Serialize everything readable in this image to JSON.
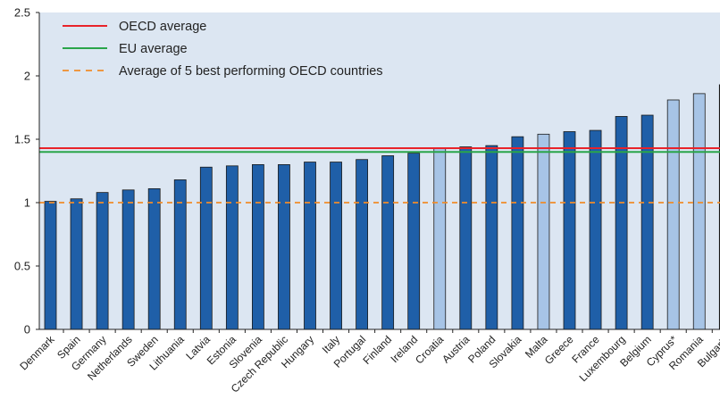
{
  "chart_data": {
    "type": "bar",
    "title": "",
    "xlabel": "",
    "ylabel": "",
    "ylim": [
      0,
      2.5
    ],
    "yticks": [
      "0",
      "0.5",
      "1",
      "1.5",
      "2",
      "2.5"
    ],
    "grid": false,
    "legend_position": "top-left",
    "categories": [
      "Denmark",
      "Spain",
      "Germany",
      "Netherlands",
      "Sweden",
      "Lithuania",
      "Latvia",
      "Estonia",
      "Slovenia",
      "Czech Republic",
      "Hungary",
      "Italy",
      "Portugal",
      "Finland",
      "Ireland",
      "Croatia",
      "Austria",
      "Poland",
      "Slovakia",
      "Malta",
      "Greece",
      "France",
      "Luxembourg",
      "Belgium",
      "Cyprus*",
      "Romania",
      "Bulgaria"
    ],
    "values": [
      1.01,
      1.03,
      1.08,
      1.1,
      1.11,
      1.18,
      1.28,
      1.29,
      1.3,
      1.3,
      1.32,
      1.32,
      1.34,
      1.37,
      1.39,
      1.43,
      1.44,
      1.45,
      1.52,
      1.54,
      1.56,
      1.57,
      1.68,
      1.69,
      1.81,
      1.86,
      1.93
    ],
    "bar_colors": [
      "#1f5fa8",
      "#1f5fa8",
      "#1f5fa8",
      "#1f5fa8",
      "#1f5fa8",
      "#1f5fa8",
      "#1f5fa8",
      "#1f5fa8",
      "#1f5fa8",
      "#1f5fa8",
      "#1f5fa8",
      "#1f5fa8",
      "#1f5fa8",
      "#1f5fa8",
      "#1f5fa8",
      "#a7c4e6",
      "#1f5fa8",
      "#1f5fa8",
      "#1f5fa8",
      "#a7c4e6",
      "#1f5fa8",
      "#1f5fa8",
      "#1f5fa8",
      "#1f5fa8",
      "#a7c4e6",
      "#a7c4e6",
      "#a7c4e6"
    ],
    "reference_lines": [
      {
        "name": "OECD average",
        "value": 1.43,
        "color": "#e8232a",
        "style": "solid"
      },
      {
        "name": "EU average",
        "value": 1.4,
        "color": "#2aa54a",
        "style": "solid"
      },
      {
        "name": "Average of 5 best performing OECD countries",
        "value": 1.0,
        "color": "#f08c2a",
        "style": "dashed"
      }
    ]
  }
}
